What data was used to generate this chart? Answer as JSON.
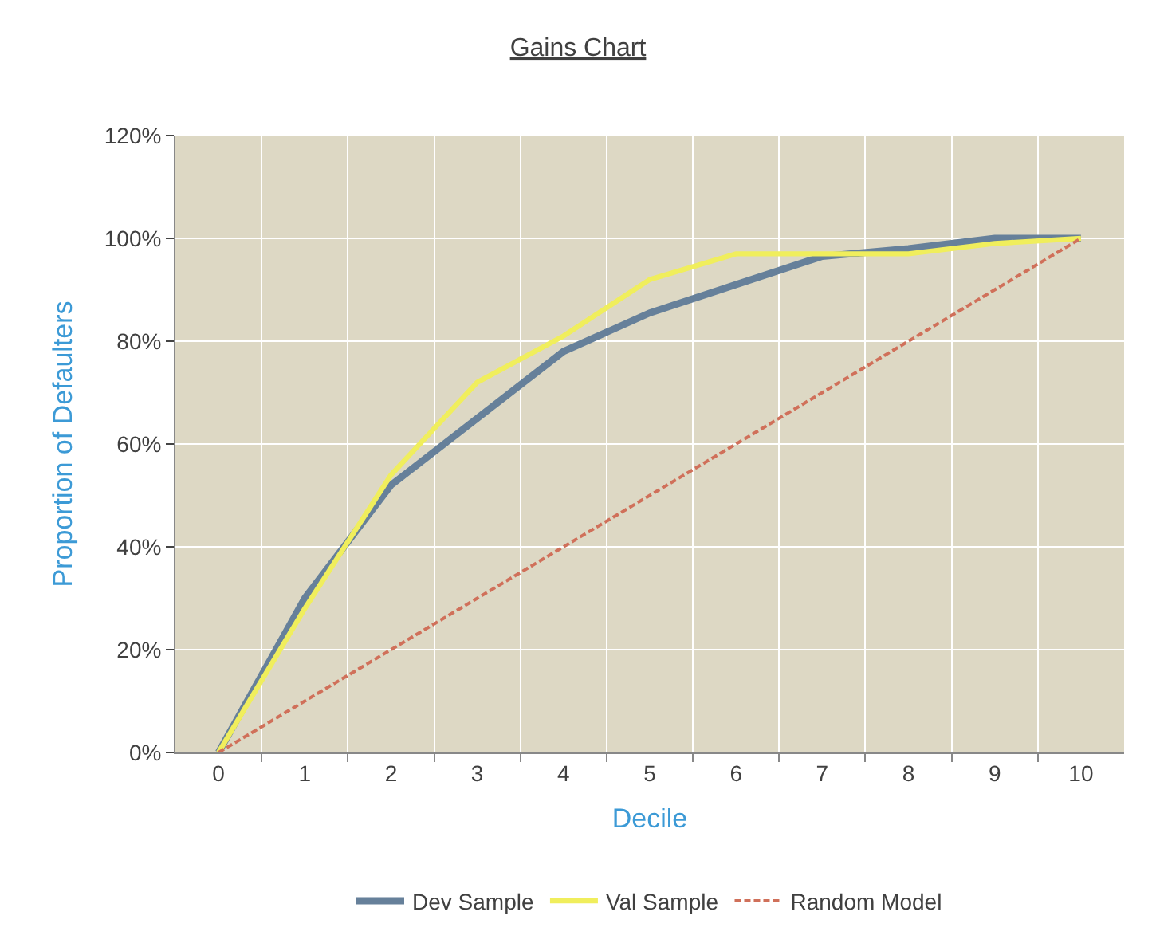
{
  "chart_data": {
    "type": "line",
    "title": "Gains Chart",
    "xlabel": "Decile",
    "ylabel": "Proportion of Defaulters",
    "categories": [
      "0",
      "1",
      "2",
      "3",
      "4",
      "5",
      "6",
      "7",
      "8",
      "9",
      "10"
    ],
    "series": [
      {
        "name": "Dev Sample",
        "color": "#66809a",
        "values": [
          0,
          30,
          52,
          65,
          78,
          85.5,
          91,
          96.5,
          98,
          100,
          100
        ]
      },
      {
        "name": "Val Sample",
        "color": "#f0ee5c",
        "values": [
          0,
          28,
          54,
          72,
          81,
          92,
          97,
          97,
          97,
          99,
          100
        ]
      },
      {
        "name": "Random Model",
        "color": "#d0705a",
        "line_style": "dashed",
        "values": [
          0,
          10,
          20,
          30,
          40,
          50,
          60,
          70,
          80,
          90,
          100
        ]
      }
    ],
    "ylim": [
      0,
      120
    ],
    "yticks": [
      {
        "value": 0,
        "label": "0%"
      },
      {
        "value": 20,
        "label": "20%"
      },
      {
        "value": 40,
        "label": "40%"
      },
      {
        "value": 60,
        "label": "60%"
      },
      {
        "value": 80,
        "label": "80%"
      },
      {
        "value": 100,
        "label": "100%"
      },
      {
        "value": 120,
        "label": "120%"
      }
    ],
    "grid": true,
    "legend": "bottom",
    "line_style": "solid",
    "marker": "none"
  }
}
